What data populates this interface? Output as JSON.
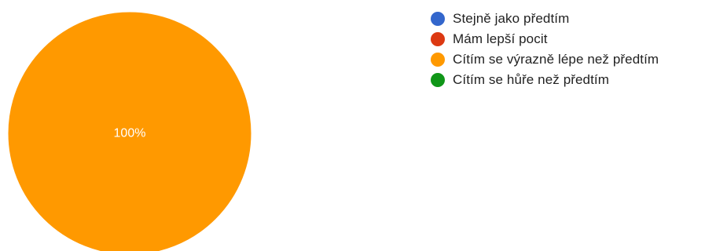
{
  "chart_data": {
    "type": "pie",
    "title": "",
    "legend_position": "right",
    "slices": [
      {
        "label": "Stejně jako předtím",
        "value": 0,
        "color": "#3366cc"
      },
      {
        "label": "Mám lepší pocit",
        "value": 0,
        "color": "#dc3912"
      },
      {
        "label": "Cítím se výrazně lépe než předtím",
        "value": 100,
        "color": "#ff9900"
      },
      {
        "label": "Cítím se hůře než předtím",
        "value": 0,
        "color": "#109618"
      }
    ],
    "data_labels": [
      "",
      "",
      "100%",
      ""
    ]
  }
}
